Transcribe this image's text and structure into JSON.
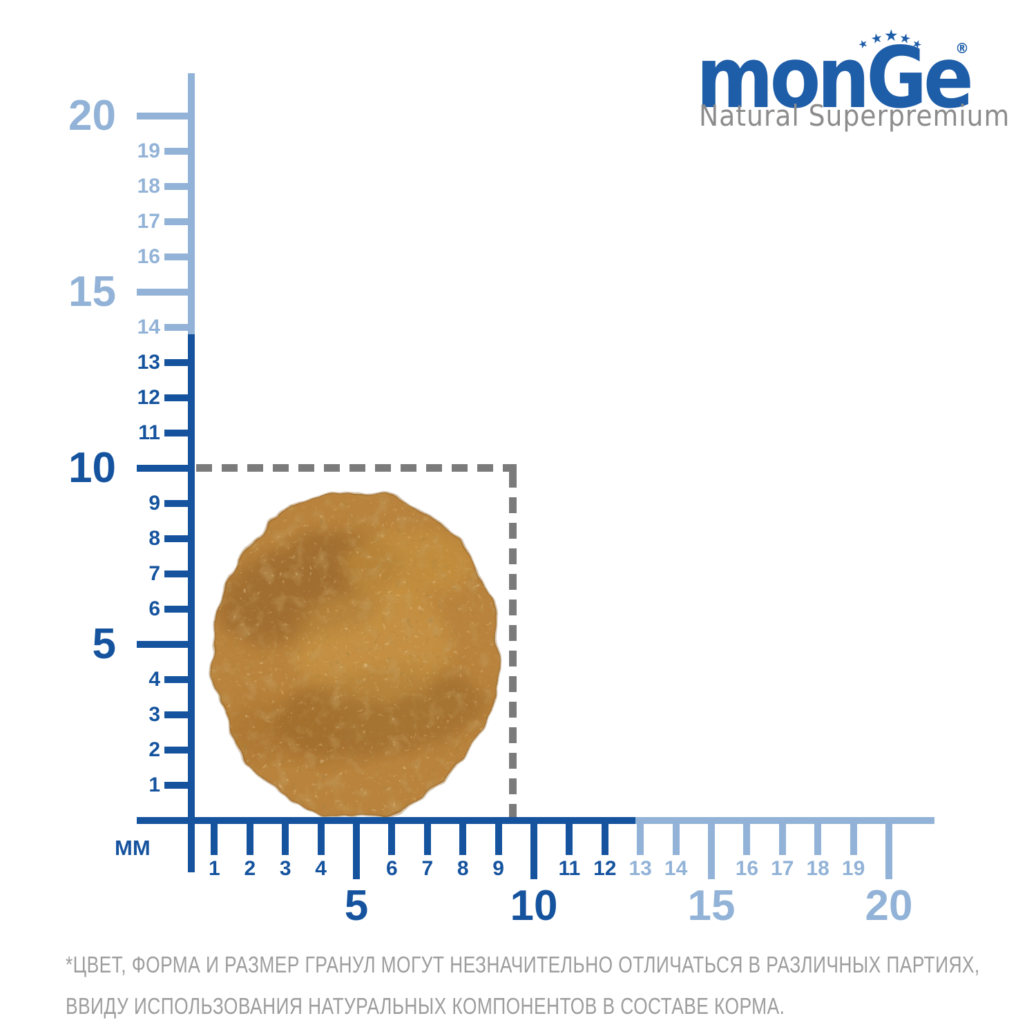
{
  "brand": {
    "logo_text": "monGe",
    "registered_mark": "®",
    "tagline": "Natural Superpremium",
    "star_count": 5
  },
  "ruler": {
    "unit_label": "MM",
    "tick_labels": [
      "1",
      "2",
      "3",
      "4",
      "5",
      "6",
      "7",
      "8",
      "9",
      "10",
      "11",
      "12",
      "13",
      "14",
      "15",
      "16",
      "17",
      "18",
      "19",
      "20"
    ],
    "major_step": 5,
    "axis_min": 0,
    "axis_max": 20,
    "vertical_light_from": 14,
    "horizontal_light_from": 13
  },
  "measurement": {
    "unit": "mm",
    "kibble_box_width_mm": 9.4,
    "kibble_box_height_mm": 10
  },
  "footnote": {
    "line1": "*ЦВЕТ, ФОРМА И РАЗМЕР ГРАНУЛ МОГУТ НЕЗНАЧИТЕЛЬНО ОТЛИЧАТЬСЯ В РАЗЛИЧНЫХ ПАРТИЯХ,",
    "line2": "ВВИДУ ИСПОЛЬЗОВАНИЯ НАТУРАЛЬНЫХ КОМПОНЕНТОВ В СОСТАВЕ КОРМА."
  },
  "colors": {
    "dark_blue": "#15539e",
    "light_blue": "#92b3d7",
    "dash_gray": "#7b7b7b",
    "footnote_gray": "#9d9d9d",
    "logo_blue": "#1e5da8",
    "tagline_gray": "#8c8c8c",
    "kibble_base": "#b9833c"
  }
}
